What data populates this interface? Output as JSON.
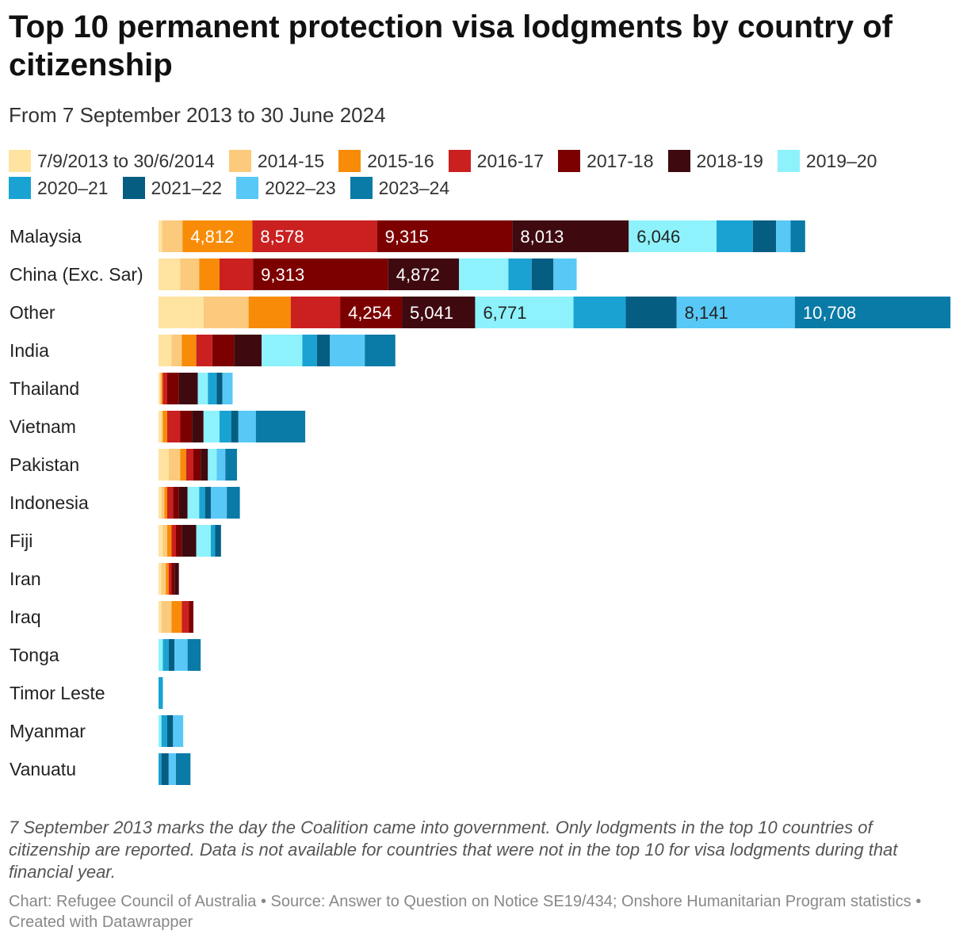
{
  "title": "Top 10 permanent protection visa lodgments by country of citizenship",
  "subtitle": "From 7 September 2013 to 30 June 2024",
  "notes": "7 September 2013 marks the day the Coalition came into government. Only lodgments in the top 10 countries of citizenship are reported. Data is not available for countries that were not in the top 10 for visa lodgments during that financial year.",
  "footer": "Chart: Refugee Council of Australia • Source: Answer to Question on Notice SE19/434; Onshore Humanitarian Program statistics • Created with Datawrapper",
  "chart_data": {
    "type": "bar",
    "orientation": "horizontal",
    "stacked": true,
    "legend_position": "top",
    "grid": false,
    "title": "Top 10 permanent protection visa lodgments by country of citizenship",
    "subtitle": "From 7 September 2013 to 30 June 2024",
    "xlim": [
      0,
      55000
    ],
    "categories": [
      "Malaysia",
      "China (Exc. Sar)",
      "Other",
      "India",
      "Thailand",
      "Vietnam",
      "Pakistan",
      "Indonesia",
      "Fiji",
      "Iran",
      "Iraq",
      "Tonga",
      "Timor Leste",
      "Myanmar",
      "Vanuatu"
    ],
    "series": [
      {
        "name": "7/9/2013 to 30/6/2014",
        "color": "#fee4a0",
        "values": [
          250,
          1500,
          3100,
          900,
          100,
          200,
          700,
          200,
          300,
          200,
          200,
          0,
          0,
          0,
          0
        ]
      },
      {
        "name": "2014-15",
        "color": "#fcca7c",
        "values": [
          1400,
          1300,
          3100,
          700,
          100,
          100,
          800,
          200,
          300,
          300,
          700,
          0,
          0,
          0,
          0
        ]
      },
      {
        "name": "2015-16",
        "color": "#f88c08",
        "values": [
          4812,
          1400,
          2900,
          1000,
          100,
          300,
          400,
          200,
          300,
          200,
          700,
          0,
          0,
          0,
          0
        ]
      },
      {
        "name": "2016-17",
        "color": "#ca2020",
        "values": [
          8578,
          2300,
          3400,
          1100,
          300,
          900,
          500,
          400,
          300,
          200,
          500,
          0,
          0,
          0,
          0
        ]
      },
      {
        "name": "2017-18",
        "color": "#7c0000",
        "values": [
          9315,
          9313,
          4254,
          1500,
          800,
          800,
          500,
          400,
          400,
          200,
          300,
          0,
          0,
          0,
          0
        ]
      },
      {
        "name": "2018-19",
        "color": "#3e0a10",
        "values": [
          8013,
          4872,
          5041,
          1900,
          1300,
          800,
          500,
          600,
          1000,
          300,
          0,
          0,
          0,
          0,
          0
        ]
      },
      {
        "name": "2019–20",
        "color": "#8df2fb",
        "values": [
          6046,
          3400,
          6771,
          2800,
          700,
          1100,
          600,
          800,
          1000,
          0,
          0,
          300,
          0,
          200,
          0
        ]
      },
      {
        "name": "2020–21",
        "color": "#1aa3d2",
        "values": [
          2500,
          1600,
          3600,
          1000,
          600,
          800,
          0,
          400,
          300,
          0,
          0,
          400,
          300,
          400,
          200
        ]
      },
      {
        "name": "2021–22",
        "color": "#055d82",
        "values": [
          1600,
          1500,
          3500,
          900,
          400,
          500,
          0,
          400,
          400,
          0,
          0,
          400,
          0,
          400,
          500
        ]
      },
      {
        "name": "2022–23",
        "color": "#58c8f6",
        "values": [
          1000,
          1600,
          8141,
          2400,
          700,
          1200,
          600,
          1100,
          0,
          0,
          0,
          900,
          0,
          700,
          500
        ]
      },
      {
        "name": "2023–24",
        "color": "#0a7aa6",
        "values": [
          1000,
          0,
          10708,
          2100,
          0,
          3400,
          800,
          900,
          0,
          0,
          0,
          900,
          0,
          0,
          1000
        ]
      }
    ],
    "labeled_values": [
      {
        "category": "Malaysia",
        "series": "2015-16",
        "label": "4,812"
      },
      {
        "category": "Malaysia",
        "series": "2016-17",
        "label": "8,578"
      },
      {
        "category": "Malaysia",
        "series": "2017-18",
        "label": "9,315"
      },
      {
        "category": "Malaysia",
        "series": "2018-19",
        "label": "8,013"
      },
      {
        "category": "Malaysia",
        "series": "2019–20",
        "label": "6,046"
      },
      {
        "category": "China (Exc. Sar)",
        "series": "2017-18",
        "label": "9,313"
      },
      {
        "category": "China (Exc. Sar)",
        "series": "2018-19",
        "label": "4,872"
      },
      {
        "category": "Other",
        "series": "2017-18",
        "label": "4,254"
      },
      {
        "category": "Other",
        "series": "2018-19",
        "label": "5,041"
      },
      {
        "category": "Other",
        "series": "2019–20",
        "label": "6,771"
      },
      {
        "category": "Other",
        "series": "2022–23",
        "label": "8,141"
      },
      {
        "category": "Other",
        "series": "2023–24",
        "label": "10,708"
      }
    ]
  }
}
